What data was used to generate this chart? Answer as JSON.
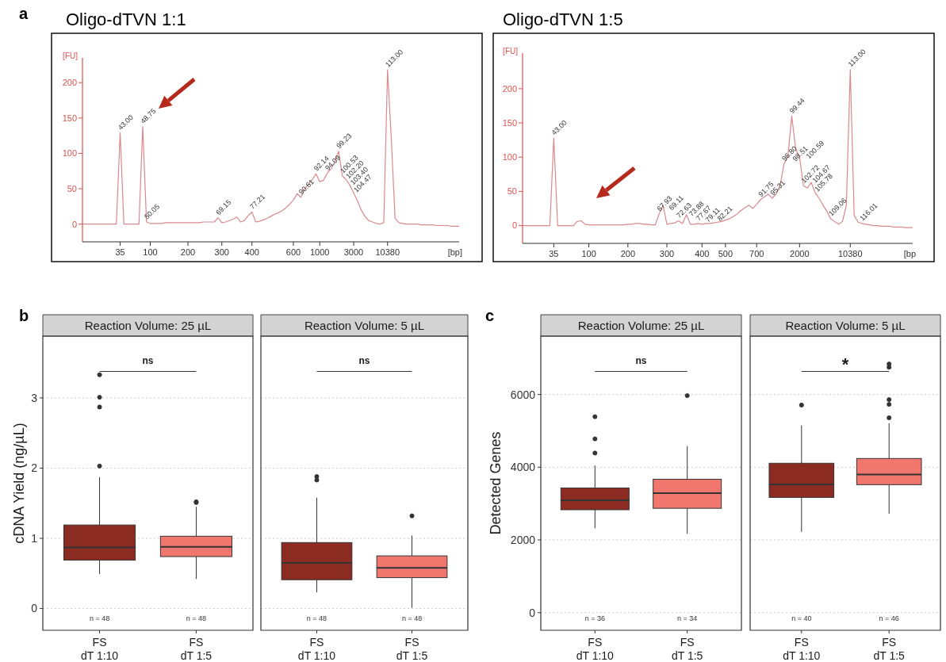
{
  "chart_data": [
    {
      "type": "line",
      "title": "Oligo-dTVN 1:1",
      "xlabel": "[bp]",
      "ylabel": "[FU]",
      "ylim": [
        -25,
        235
      ],
      "yticks": [
        0,
        50,
        100,
        150,
        200
      ],
      "marker": "none",
      "categories": [
        null,
        null,
        null,
        null,
        null,
        null,
        null,
        null,
        null,
        null,
        "35",
        null,
        null,
        null,
        null,
        null,
        null,
        null,
        "100",
        null,
        null,
        null,
        null,
        null,
        null,
        null,
        null,
        null,
        "200",
        null,
        null,
        null,
        null,
        null,
        null,
        null,
        null,
        "300",
        null,
        null,
        null,
        null,
        null,
        null,
        null,
        "400",
        null,
        null,
        null,
        null,
        null,
        null,
        null,
        null,
        null,
        null,
        "600",
        null,
        null,
        null,
        null,
        null,
        null,
        "1000",
        null,
        null,
        null,
        null,
        null,
        null,
        null,
        null,
        "3000",
        null,
        null,
        null,
        null,
        null,
        null,
        null,
        null,
        "10380",
        null,
        null,
        null,
        null,
        null,
        null,
        null,
        null,
        null,
        null,
        null,
        null,
        null,
        null,
        null,
        null,
        null,
        null,
        null
      ],
      "series": [
        {
          "color": "#d98a8e",
          "values": [
            0,
            0,
            0,
            0,
            0,
            0,
            0,
            0,
            0,
            0,
            129,
            0,
            0,
            0,
            0,
            0,
            138,
            3,
            1,
            1,
            1,
            1,
            2,
            2,
            2,
            2,
            2,
            2,
            2,
            2,
            2,
            2,
            3,
            3,
            3,
            3,
            9,
            2,
            3,
            5,
            7,
            10,
            3,
            5,
            12,
            17,
            3,
            4,
            6,
            8,
            11,
            14,
            16,
            19,
            23,
            28,
            34,
            43,
            38,
            50,
            56,
            63,
            71,
            60,
            62,
            72,
            78,
            88,
            103,
            68,
            63,
            55,
            44,
            33,
            20,
            11,
            5,
            3,
            1,
            0,
            2,
            218,
            120,
            8,
            2,
            1,
            0,
            0,
            0,
            0,
            -1,
            -1,
            -1,
            -1,
            -2,
            -2,
            -2,
            -2,
            -3,
            -3,
            -3
          ]
        }
      ],
      "annotations": [
        "a",
        "43.00",
        "48.75",
        "50.05",
        "69.15",
        "77.21",
        "90.61",
        "92.14",
        "94.09",
        "99.23",
        "100.53",
        "102.20",
        "103.40",
        "104.47",
        "113.00"
      ]
    },
    {
      "type": "line",
      "title": "Oligo-dTVN 1:5",
      "xlabel": "[bp",
      "ylabel": "[FU]",
      "ylim": [
        -26,
        252
      ],
      "yticks": [
        0,
        50,
        100,
        150,
        200
      ],
      "marker": "none",
      "categories": [
        null,
        null,
        null,
        null,
        null,
        null,
        null,
        null,
        "35",
        null,
        null,
        null,
        null,
        null,
        null,
        null,
        null,
        "100",
        null,
        null,
        null,
        null,
        null,
        null,
        null,
        null,
        null,
        "200",
        null,
        null,
        null,
        null,
        null,
        null,
        null,
        null,
        null,
        "300",
        null,
        null,
        null,
        null,
        null,
        null,
        null,
        null,
        "400",
        null,
        null,
        null,
        null,
        null,
        "500",
        null,
        null,
        null,
        null,
        null,
        null,
        null,
        "700",
        null,
        null,
        null,
        null,
        null,
        null,
        null,
        null,
        null,
        null,
        "2000",
        null,
        null,
        null,
        null,
        null,
        null,
        null,
        null,
        null,
        null,
        null,
        null,
        "10380",
        null,
        null,
        null,
        null,
        null,
        null,
        null,
        null,
        null,
        null,
        null,
        null,
        null,
        null,
        null,
        null
      ],
      "series": [
        {
          "color": "#d98a8e",
          "values": [
            0,
            0,
            0,
            0,
            0,
            0,
            0,
            0,
            128,
            0,
            0,
            0,
            0,
            0,
            6,
            7,
            2,
            1,
            1,
            1,
            1,
            1,
            1,
            1,
            1,
            1,
            1,
            2,
            2,
            3,
            3,
            2,
            2,
            1,
            1,
            17,
            30,
            2,
            3,
            4,
            7,
            3,
            16,
            2,
            2,
            3,
            2,
            3,
            3,
            4,
            5,
            6,
            8,
            10,
            13,
            17,
            22,
            26,
            30,
            25,
            31,
            38,
            42,
            46,
            40,
            46,
            58,
            90,
            100,
            160,
            112,
            100,
            58,
            55,
            63,
            48,
            40,
            30,
            21,
            10,
            6,
            2,
            6,
            30,
            228,
            15,
            5,
            3,
            2,
            1,
            0,
            0,
            -1,
            -1,
            -1,
            -2,
            -2,
            -2,
            -3,
            -3,
            -3
          ]
        }
      ],
      "annotations": [
        "43.00",
        "67.93",
        "69.11",
        "72.63",
        "73.88",
        "77.67",
        "79.11",
        "82.21",
        "91.75",
        "95.31",
        "96.80",
        "98.51",
        "99.44",
        "100.59",
        "102.72",
        "104.67",
        "105.78",
        "109.06",
        "113.00",
        "116.01"
      ]
    },
    {
      "type": "box",
      "title": "Reaction Volume: 25 µL",
      "ylabel": "cDNA Yield (ng/µL)",
      "categories": [
        "FS\ndT 1:10",
        "FS\ndT 1:5"
      ],
      "colors": [
        "#8c2b22",
        "#f0766e"
      ],
      "ylim": [
        -0.31,
        3.88
      ],
      "yticks": [
        0,
        1,
        2,
        3
      ],
      "grid": "y",
      "boxes": [
        {
          "low": 0.49,
          "q1": 0.69,
          "median": 0.87,
          "q3": 1.19,
          "high": 1.87,
          "outliers": [
            2.03,
            2.87,
            3.01,
            3.33
          ]
        },
        {
          "low": 0.42,
          "q1": 0.74,
          "median": 0.88,
          "q3": 1.03,
          "high": 1.45,
          "outliers": [
            1.51,
            1.52
          ]
        }
      ],
      "annotations": [
        "b",
        "ns",
        "n = 48",
        "n = 48"
      ]
    },
    {
      "type": "box",
      "title": "Reaction Volume: 5 µL",
      "categories": [
        "FS\ndT 1:10",
        "FS\ndT 1:5"
      ],
      "colors": [
        "#8c2b22",
        "#f0766e"
      ],
      "ylim": [
        -0.31,
        3.88
      ],
      "yticks": [
        0,
        1,
        2,
        3
      ],
      "grid": "y",
      "tick_labels": "x",
      "boxes": [
        {
          "low": 0.23,
          "q1": 0.41,
          "median": 0.65,
          "q3": 0.94,
          "high": 1.58,
          "outliers": [
            1.83,
            1.88
          ]
        },
        {
          "low": 0.01,
          "q1": 0.44,
          "median": 0.58,
          "q3": 0.75,
          "high": 1.04,
          "outliers": [
            1.32
          ]
        }
      ],
      "annotations": [
        "ns",
        "n = 48",
        "n = 48"
      ]
    },
    {
      "type": "box",
      "title": "Reaction Volume: 25 µL",
      "ylabel": "Detected Genes",
      "categories": [
        "FS\ndT 1:10",
        "FS\ndT 1:5"
      ],
      "colors": [
        "#8c2b22",
        "#f0766e"
      ],
      "ylim": [
        -485,
        7605
      ],
      "yticks": [
        0,
        2000,
        4000,
        6000
      ],
      "grid": "y",
      "boxes": [
        {
          "low": 2320,
          "q1": 2830,
          "median": 3090,
          "q3": 3430,
          "high": 4050,
          "outliers": [
            4390,
            4780,
            5390
          ]
        },
        {
          "low": 2170,
          "q1": 2870,
          "median": 3290,
          "q3": 3670,
          "high": 4580,
          "outliers": [
            5970
          ]
        }
      ],
      "annotations": [
        "c",
        "ns",
        "n = 36",
        "n = 34"
      ]
    },
    {
      "type": "box",
      "title": "Reaction Volume: 5 µL",
      "categories": [
        "FS\ndT 1:10",
        "FS\ndT 1:5"
      ],
      "colors": [
        "#8c2b22",
        "#f0766e"
      ],
      "ylim": [
        -485,
        7605
      ],
      "yticks": [
        0,
        2000,
        4000,
        6000
      ],
      "grid": "y",
      "tick_labels": "x",
      "boxes": [
        {
          "low": 2220,
          "q1": 3170,
          "median": 3530,
          "q3": 4110,
          "high": 5150,
          "outliers": [
            5710
          ]
        },
        {
          "low": 2720,
          "q1": 3520,
          "median": 3800,
          "q3": 4240,
          "high": 5210,
          "outliers": [
            5360,
            5730,
            5860,
            6750,
            6840
          ]
        }
      ],
      "annotations": [
        "*",
        "n = 40",
        "n = 46"
      ]
    }
  ]
}
